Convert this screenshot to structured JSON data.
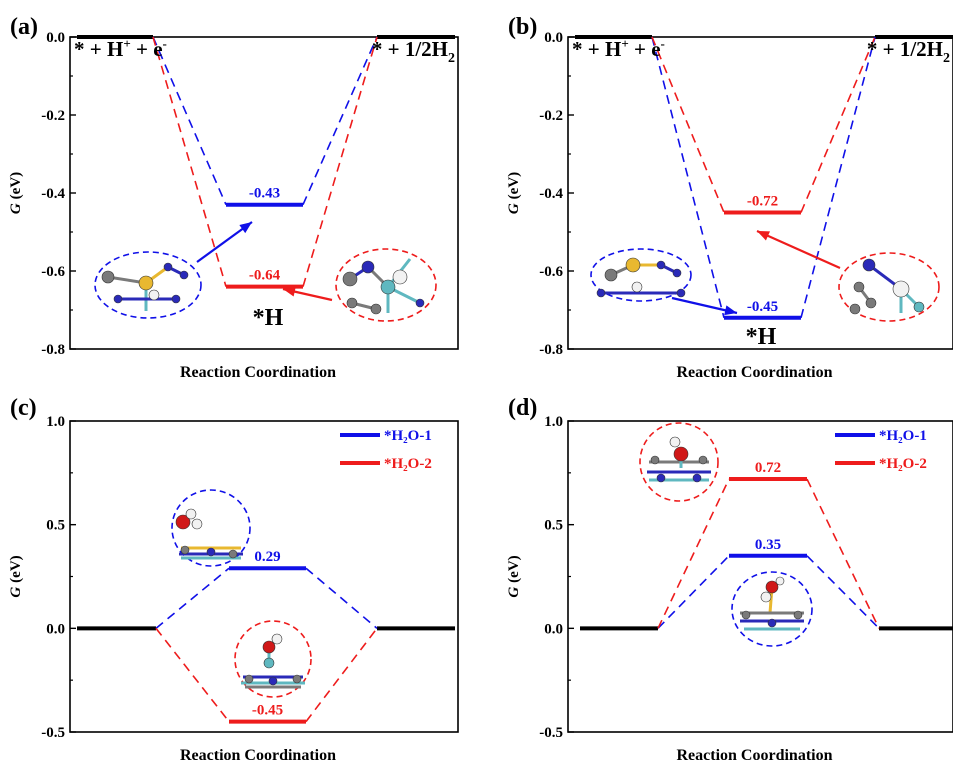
{
  "panels": [
    {
      "letter": "(a)",
      "xlabel": "Reaction Coordination",
      "ylabel_italic": "G",
      "ylabel_unit": "(eV)",
      "yticks": [
        "0.0",
        "-0.2",
        "-0.4",
        "-0.6",
        "-0.8"
      ],
      "state_labels": {
        "initial": {
          "prefix": "* + H",
          "sup1": "+",
          "mid": " + e",
          "sup2": "-"
        },
        "final": {
          "prefix": "* + 1/2H",
          "sub": "2"
        },
        "intermediate": "*H"
      },
      "values": [
        "-0.43",
        "-0.64"
      ]
    },
    {
      "letter": "(b)",
      "xlabel": "Reaction Coordination",
      "ylabel_italic": "G",
      "ylabel_unit": "(eV)",
      "yticks": [
        "0.0",
        "-0.2",
        "-0.4",
        "-0.6",
        "-0.8"
      ],
      "state_labels": {
        "initial": {
          "prefix": "* + H",
          "sup1": "+",
          "mid": " + e",
          "sup2": "-"
        },
        "final": {
          "prefix": "* + 1/2H",
          "sub": "2"
        },
        "intermediate": "*H"
      },
      "values": [
        "-0.45",
        "-0.72"
      ]
    },
    {
      "letter": "(c)",
      "xlabel": "Reaction Coordination",
      "ylabel_italic": "G",
      "ylabel_unit": "(eV)",
      "yticks": [
        "1.0",
        "0.5",
        "0.0",
        "-0.5"
      ],
      "legend": [
        "*H₂O-1",
        "*H₂O-2"
      ],
      "values": [
        "0.29",
        "-0.45"
      ]
    },
    {
      "letter": "(d)",
      "xlabel": "Reaction Coordination",
      "ylabel_italic": "G",
      "ylabel_unit": "(eV)",
      "yticks": [
        "1.0",
        "0.5",
        "0.0",
        "-0.5"
      ],
      "legend": [
        "*H₂O-1",
        "*H₂O-2"
      ],
      "values": [
        "0.35",
        "0.72"
      ]
    }
  ],
  "colors": {
    "blue": "#1010e8",
    "red": "#ee1c1c",
    "black": "#000000",
    "atom_gray": "#7a7a7a",
    "atom_blue": "#2a2ab8",
    "atom_yellow": "#e8b830",
    "atom_teal": "#5fb8c0",
    "atom_red": "#d01818",
    "atom_white": "#f2f2f2"
  },
  "chart_data": [
    {
      "type": "line",
      "chart_kind": "free-energy step diagram",
      "xlabel": "Reaction Coordination",
      "ylabel": "G (eV)",
      "ylim": [
        -0.8,
        0.0
      ],
      "states": [
        "* + H+ + e-",
        "*H",
        "* + 1/2H2"
      ],
      "series": [
        {
          "color": "blue",
          "values": [
            0.0,
            -0.43,
            0.0
          ]
        },
        {
          "color": "red",
          "values": [
            0.0,
            -0.64,
            0.0
          ]
        }
      ]
    },
    {
      "type": "line",
      "chart_kind": "free-energy step diagram",
      "xlabel": "Reaction Coordination",
      "ylabel": "G (eV)",
      "ylim": [
        -0.8,
        0.0
      ],
      "states": [
        "* + H+ + e-",
        "*H",
        "* + 1/2H2"
      ],
      "series": [
        {
          "color": "blue",
          "values": [
            0.0,
            -0.72,
            0.0
          ]
        },
        {
          "color": "red",
          "values": [
            0.0,
            -0.45,
            0.0
          ]
        }
      ]
    },
    {
      "type": "line",
      "chart_kind": "free-energy step diagram",
      "xlabel": "Reaction Coordination",
      "ylabel": "G (eV)",
      "ylim": [
        -0.5,
        1.0
      ],
      "legend_position": "top-right",
      "series": [
        {
          "name": "*H2O-1",
          "color": "blue",
          "values": [
            0.0,
            0.29,
            0.0
          ]
        },
        {
          "name": "*H2O-2",
          "color": "red",
          "values": [
            0.0,
            -0.45,
            0.0
          ]
        }
      ]
    },
    {
      "type": "line",
      "chart_kind": "free-energy step diagram",
      "xlabel": "Reaction Coordination",
      "ylabel": "G (eV)",
      "ylim": [
        -0.5,
        1.0
      ],
      "legend_position": "top-right",
      "series": [
        {
          "name": "*H2O-1",
          "color": "blue",
          "values": [
            0.0,
            0.35,
            0.0
          ]
        },
        {
          "name": "*H2O-2",
          "color": "red",
          "values": [
            0.0,
            0.72,
            0.0
          ]
        }
      ]
    }
  ]
}
